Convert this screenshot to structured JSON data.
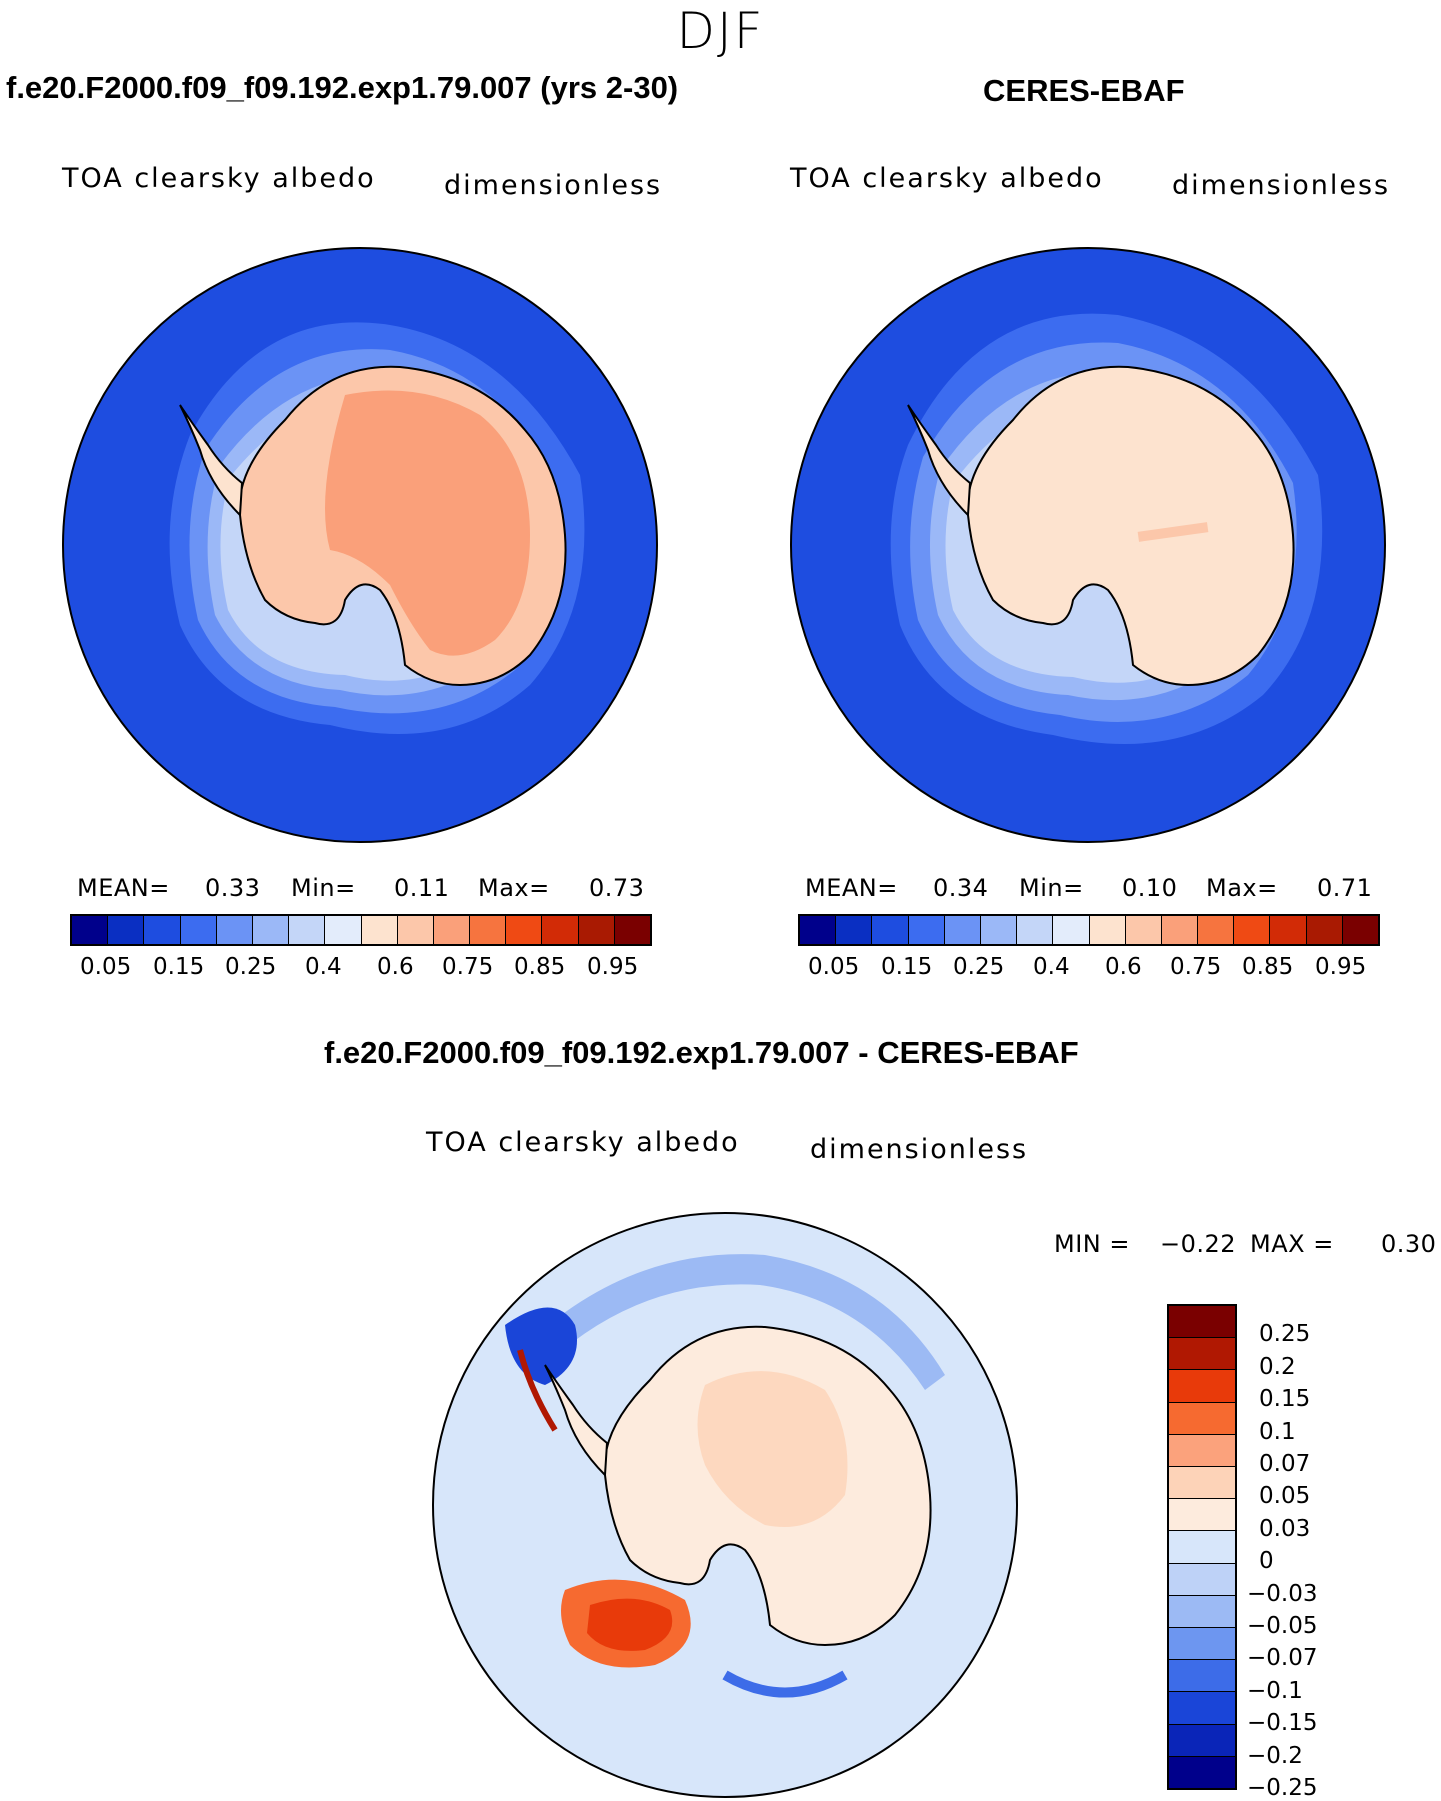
{
  "season": "DJF",
  "left_panel": {
    "title": "f.e20.F2000.f09_f09.192.exp1.79.007 (yrs 2-30)",
    "variable": "TOA clearsky albedo",
    "units": "dimensionless",
    "stats": {
      "mean_label": "MEAN=",
      "mean": "0.33",
      "min_label": "Min=",
      "min": "0.11",
      "max_label": "Max=",
      "max": "0.73"
    }
  },
  "right_panel": {
    "title": "CERES-EBAF",
    "variable": "TOA clearsky albedo",
    "units": "dimensionless",
    "stats": {
      "mean_label": "MEAN=",
      "mean": "0.34",
      "min_label": "Min=",
      "min": "0.10",
      "max_label": "Max=",
      "max": "0.71"
    }
  },
  "diff_panel": {
    "title": "f.e20.F2000.f09_f09.192.exp1.79.007 - CERES-EBAF",
    "variable": "TOA clearsky albedo",
    "units": "dimensionless",
    "stats": {
      "min_label": "MIN =",
      "min": "−0.22",
      "max_label": "MAX =",
      "max": "0.30"
    }
  },
  "abs_colorbar": {
    "colors": [
      "#00008b",
      "#0a2fc2",
      "#1e4de0",
      "#3c6cf0",
      "#6b93f5",
      "#9bb8f7",
      "#c4d6f8",
      "#e3ecfb",
      "#fde3cf",
      "#fcc7aa",
      "#faa07a",
      "#f6743f",
      "#ef4a14",
      "#d22b06",
      "#a91a02",
      "#7a0000"
    ],
    "labels": [
      "0.05",
      "0.15",
      "0.25",
      "0.4",
      "0.6",
      "0.75",
      "0.85",
      "0.95"
    ]
  },
  "diff_colorbar": {
    "colors": [
      "#7a0000",
      "#b01802",
      "#e83a0a",
      "#f66a30",
      "#fba27c",
      "#fdd3b8",
      "#fdebdd",
      "#d7e6fa",
      "#bed2f7",
      "#9cbaf4",
      "#6d96f0",
      "#3d6ce8",
      "#1a45d8",
      "#0a25b8",
      "#00008b"
    ],
    "labels": [
      "0.25",
      "0.2",
      "0.15",
      "0.1",
      "0.07",
      "0.05",
      "0.03",
      "0",
      "−0.03",
      "−0.05",
      "−0.07",
      "−0.1",
      "−0.15",
      "−0.2",
      "−0.25"
    ]
  }
}
